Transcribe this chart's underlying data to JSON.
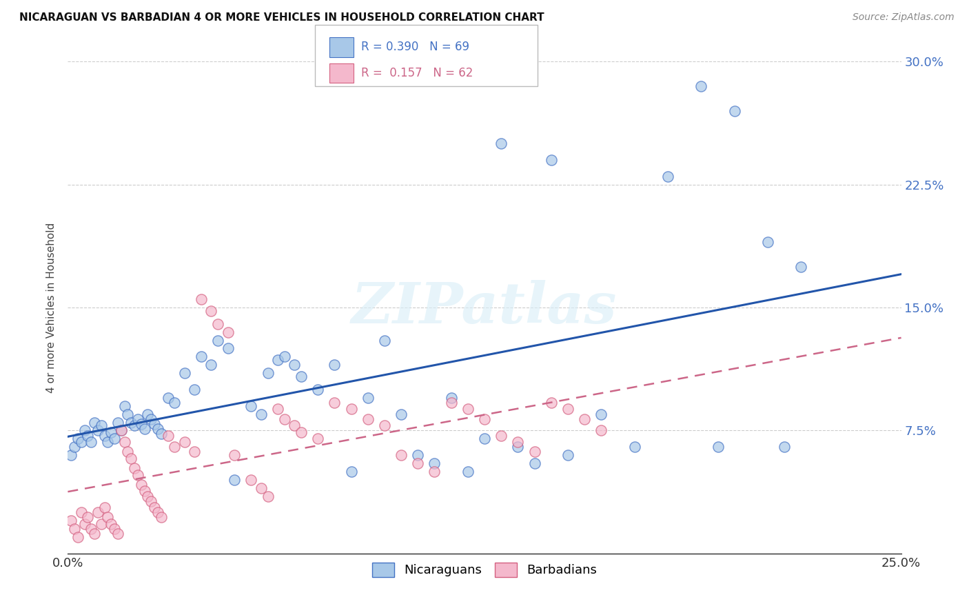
{
  "title": "NICARAGUAN VS BARBADIAN 4 OR MORE VEHICLES IN HOUSEHOLD CORRELATION CHART",
  "source": "Source: ZipAtlas.com",
  "ylabel": "4 or more Vehicles in Household",
  "xlim": [
    0.0,
    0.25
  ],
  "ylim": [
    0.0,
    0.3
  ],
  "xticks": [
    0.0,
    0.05,
    0.1,
    0.15,
    0.2,
    0.25
  ],
  "yticks": [
    0.0,
    0.075,
    0.15,
    0.225,
    0.3
  ],
  "xtick_labels": [
    "0.0%",
    "",
    "",
    "",
    "",
    "25.0%"
  ],
  "ytick_labels_left": [
    "",
    "",
    "",
    "",
    ""
  ],
  "ytick_labels_right": [
    "",
    "7.5%",
    "15.0%",
    "22.5%",
    "30.0%"
  ],
  "nicaraguan_fill": "#a8c8e8",
  "nicaraguan_edge": "#4472c4",
  "barbadian_fill": "#f4b8cc",
  "barbadian_edge": "#d46080",
  "nicaraguan_line_color": "#2255aa",
  "barbadian_line_color": "#cc6688",
  "watermark_text": "ZIPatlas",
  "watermark_color": "#ddeeff",
  "legend_box_color": "#dddddd",
  "legend_nic_text_r": "R = 0.390",
  "legend_nic_text_n": "N = 69",
  "legend_bar_text_r": "R =  0.157",
  "legend_bar_text_n": "N = 62",
  "legend_text_color_nic": "#4472c4",
  "legend_text_color_bar": "#cc6688",
  "nic_x": [
    0.001,
    0.002,
    0.003,
    0.004,
    0.005,
    0.006,
    0.007,
    0.008,
    0.009,
    0.01,
    0.011,
    0.012,
    0.013,
    0.014,
    0.015,
    0.016,
    0.017,
    0.018,
    0.019,
    0.02,
    0.021,
    0.022,
    0.023,
    0.024,
    0.025,
    0.026,
    0.027,
    0.028,
    0.03,
    0.032,
    0.035,
    0.038,
    0.04,
    0.043,
    0.045,
    0.048,
    0.05,
    0.055,
    0.058,
    0.06,
    0.063,
    0.065,
    0.068,
    0.07,
    0.075,
    0.08,
    0.085,
    0.09,
    0.095,
    0.1,
    0.105,
    0.11,
    0.115,
    0.12,
    0.125,
    0.13,
    0.135,
    0.14,
    0.145,
    0.15,
    0.16,
    0.17,
    0.18,
    0.19,
    0.195,
    0.2,
    0.21,
    0.215,
    0.22
  ],
  "nic_y": [
    0.06,
    0.065,
    0.07,
    0.068,
    0.075,
    0.072,
    0.068,
    0.08,
    0.075,
    0.078,
    0.072,
    0.068,
    0.074,
    0.07,
    0.08,
    0.075,
    0.09,
    0.085,
    0.08,
    0.078,
    0.082,
    0.079,
    0.076,
    0.085,
    0.082,
    0.079,
    0.076,
    0.073,
    0.095,
    0.092,
    0.11,
    0.1,
    0.12,
    0.115,
    0.13,
    0.125,
    0.045,
    0.09,
    0.085,
    0.11,
    0.118,
    0.12,
    0.115,
    0.108,
    0.1,
    0.115,
    0.05,
    0.095,
    0.13,
    0.085,
    0.06,
    0.055,
    0.095,
    0.05,
    0.07,
    0.25,
    0.065,
    0.055,
    0.24,
    0.06,
    0.085,
    0.065,
    0.23,
    0.285,
    0.065,
    0.27,
    0.19,
    0.065,
    0.175
  ],
  "bar_x": [
    0.001,
    0.002,
    0.003,
    0.004,
    0.005,
    0.006,
    0.007,
    0.008,
    0.009,
    0.01,
    0.011,
    0.012,
    0.013,
    0.014,
    0.015,
    0.016,
    0.017,
    0.018,
    0.019,
    0.02,
    0.021,
    0.022,
    0.023,
    0.024,
    0.025,
    0.026,
    0.027,
    0.028,
    0.03,
    0.032,
    0.035,
    0.038,
    0.04,
    0.043,
    0.045,
    0.048,
    0.05,
    0.055,
    0.058,
    0.06,
    0.063,
    0.065,
    0.068,
    0.07,
    0.075,
    0.08,
    0.085,
    0.09,
    0.095,
    0.1,
    0.105,
    0.11,
    0.115,
    0.12,
    0.125,
    0.13,
    0.135,
    0.14,
    0.145,
    0.15,
    0.155,
    0.16
  ],
  "bar_y": [
    0.02,
    0.015,
    0.01,
    0.025,
    0.018,
    0.022,
    0.015,
    0.012,
    0.025,
    0.018,
    0.028,
    0.022,
    0.018,
    0.015,
    0.012,
    0.075,
    0.068,
    0.062,
    0.058,
    0.052,
    0.048,
    0.042,
    0.038,
    0.035,
    0.032,
    0.028,
    0.025,
    0.022,
    0.072,
    0.065,
    0.068,
    0.062,
    0.155,
    0.148,
    0.14,
    0.135,
    0.06,
    0.045,
    0.04,
    0.035,
    0.088,
    0.082,
    0.078,
    0.074,
    0.07,
    0.092,
    0.088,
    0.082,
    0.078,
    0.06,
    0.055,
    0.05,
    0.092,
    0.088,
    0.082,
    0.072,
    0.068,
    0.062,
    0.092,
    0.088,
    0.082,
    0.075
  ]
}
